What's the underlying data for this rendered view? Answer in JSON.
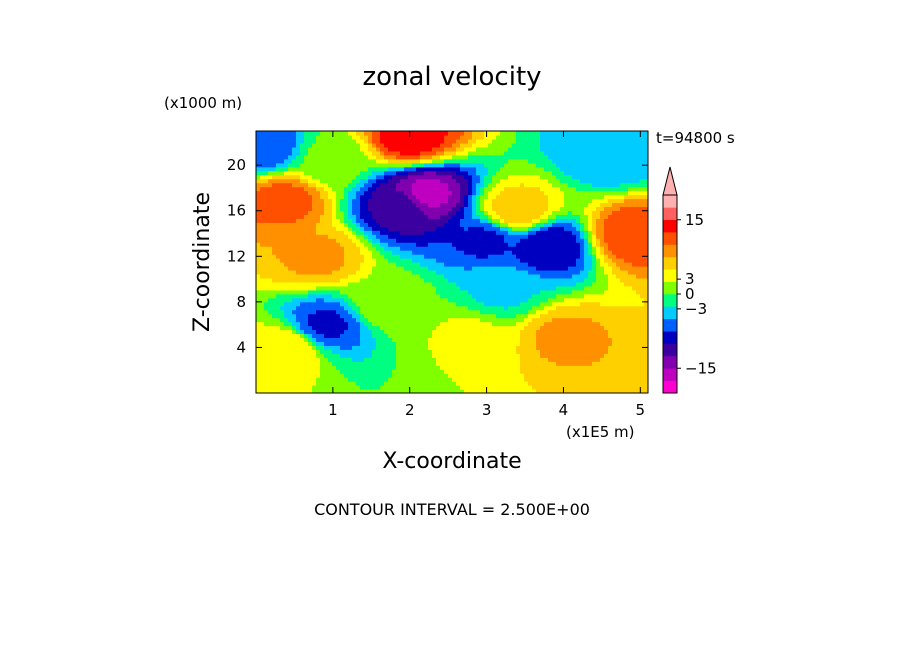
{
  "chart_data": {
    "type": "heatmap",
    "title": "zonal velocity",
    "time_label": "t=94800 s",
    "xlabel": "X-coordinate",
    "ylabel": "Z-coordinate",
    "x_unit": "(x1E5 m)",
    "y_unit": "(x1000 m)",
    "xlim": [
      0,
      5.1
    ],
    "ylim": [
      0,
      23
    ],
    "x_ticks": [
      "1",
      "2",
      "3",
      "4",
      "5"
    ],
    "y_ticks": [
      "4",
      "8",
      "12",
      "16",
      "20"
    ],
    "footer": "CONTOUR INTERVAL = 2.500E+00",
    "colorbar": {
      "ticks": [
        "15",
        "3",
        "0",
        "−3",
        "−15"
      ],
      "colors": [
        "#ff00d0",
        "#c000c0",
        "#8000b0",
        "#3c00a0",
        "#0000c0",
        "#0060ff",
        "#00ccff",
        "#00ff80",
        "#80ff00",
        "#ffff00",
        "#ffd000",
        "#ff9000",
        "#ff5000",
        "#ff0000",
        "#ff6060",
        "#ffb0b0"
      ],
      "levels": [
        -20,
        -17.5,
        -15,
        -12.5,
        -10,
        -7.5,
        -5,
        -2.5,
        0,
        2.5,
        5,
        7.5,
        10,
        12.5,
        15,
        17.5,
        20
      ]
    },
    "features": [
      {
        "x": 2.2,
        "z": 17.5,
        "value": -16
      },
      {
        "x": 1.9,
        "z": 16.5,
        "value": -11
      },
      {
        "x": 2.0,
        "z": 22.5,
        "value": 14
      },
      {
        "x": 0.35,
        "z": 17.0,
        "value": 11
      },
      {
        "x": 0.8,
        "z": 12.0,
        "value": 8
      },
      {
        "x": 3.4,
        "z": 16.0,
        "value": 7
      },
      {
        "x": 3.8,
        "z": 13.0,
        "value": -10
      },
      {
        "x": 3.0,
        "z": 13.5,
        "value": -8
      },
      {
        "x": 1.7,
        "z": 8.0,
        "value": 2
      },
      {
        "x": 2.8,
        "z": 5.0,
        "value": 3
      },
      {
        "x": 4.0,
        "z": 5.0,
        "value": 8
      },
      {
        "x": 0.1,
        "z": 21.5,
        "value": -7
      },
      {
        "x": 4.6,
        "z": 21.0,
        "value": -5
      },
      {
        "x": 4.9,
        "z": 14.0,
        "value": 12
      },
      {
        "x": 0.9,
        "z": 6.0,
        "value": -8
      },
      {
        "x": 1.0,
        "z": 20.5,
        "value": 1
      },
      {
        "x": 3.2,
        "z": 9.0,
        "value": -3
      },
      {
        "x": 0.4,
        "z": 4.0,
        "value": 5
      }
    ]
  }
}
